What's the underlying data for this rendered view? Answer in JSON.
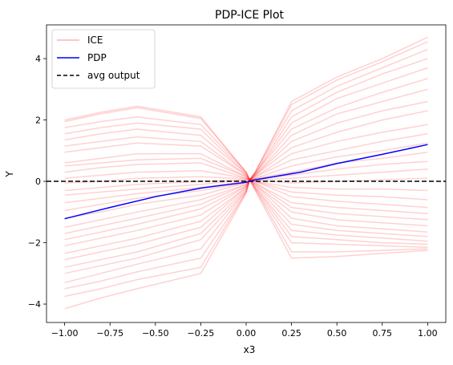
{
  "chart_data": {
    "type": "line",
    "title": "PDP-ICE Plot",
    "xlabel": "x3",
    "ylabel": "Y",
    "xlim": [
      -1.1,
      1.1
    ],
    "ylim": [
      -4.6,
      5.1
    ],
    "xticks": [
      -1.0,
      -0.75,
      -0.5,
      -0.25,
      0.0,
      0.25,
      0.5,
      0.75,
      1.0
    ],
    "xtick_labels": [
      "−1.00",
      "−0.75",
      "−0.50",
      "−0.25",
      "0.00",
      "0.25",
      "0.50",
      "0.75",
      "1.00"
    ],
    "yticks": [
      -4,
      -2,
      0,
      2,
      4
    ],
    "ytick_labels": [
      "−4",
      "−2",
      "0",
      "2",
      "4"
    ],
    "grid": false,
    "legend": {
      "placement": "top-left",
      "entries": [
        {
          "label": "ICE",
          "color": "#ffb3b3",
          "style": "solid"
        },
        {
          "label": "PDP",
          "color": "#0000ff",
          "style": "solid"
        },
        {
          "label": "avg output",
          "color": "#000000",
          "style": "dashed"
        }
      ]
    },
    "pdp": {
      "name": "PDP",
      "color": "#0000ff",
      "x": [
        -1.0,
        -0.75,
        -0.5,
        -0.25,
        0.0,
        0.05,
        0.3,
        0.5,
        0.75,
        1.0
      ],
      "y": [
        -1.22,
        -0.85,
        -0.5,
        -0.22,
        -0.03,
        0.05,
        0.3,
        0.58,
        0.88,
        1.2
      ]
    },
    "avg_output": {
      "name": "avg output",
      "y": 0.0,
      "color": "#000000"
    },
    "ice": {
      "name": "ICE",
      "color": "#ff0000",
      "alpha": 0.18,
      "x": [
        -1.0,
        -0.8,
        -0.6,
        -0.25,
        0.0,
        0.02,
        0.05,
        0.25,
        0.5,
        0.75,
        1.0
      ],
      "curves": [
        [
          2.0,
          2.25,
          2.45,
          2.1,
          0.3,
          0.05,
          0.3,
          2.6,
          3.4,
          4.0,
          4.7
        ],
        [
          1.95,
          2.2,
          2.4,
          2.05,
          0.3,
          0.05,
          0.3,
          2.5,
          3.3,
          3.9,
          4.55
        ],
        [
          1.75,
          1.95,
          2.1,
          1.85,
          0.3,
          0.05,
          0.3,
          2.3,
          3.1,
          3.7,
          4.3
        ],
        [
          1.55,
          1.75,
          1.9,
          1.7,
          0.25,
          0.05,
          0.25,
          2.1,
          2.9,
          3.5,
          4.0
        ],
        [
          1.35,
          1.55,
          1.7,
          1.5,
          0.25,
          0.05,
          0.25,
          1.9,
          2.7,
          3.2,
          3.7
        ],
        [
          1.15,
          1.3,
          1.45,
          1.3,
          0.2,
          0.05,
          0.25,
          1.7,
          2.4,
          2.9,
          3.35
        ],
        [
          0.95,
          1.1,
          1.25,
          1.15,
          0.2,
          0.05,
          0.2,
          1.5,
          2.2,
          2.6,
          3.0
        ],
        [
          0.6,
          0.75,
          0.9,
          0.9,
          0.15,
          0.05,
          0.2,
          1.3,
          1.9,
          2.3,
          2.6
        ],
        [
          0.5,
          0.6,
          0.7,
          0.75,
          0.15,
          0.05,
          0.2,
          1.1,
          1.6,
          2.0,
          2.3
        ],
        [
          0.3,
          0.45,
          0.55,
          0.6,
          0.1,
          0.05,
          0.15,
          0.9,
          1.3,
          1.6,
          1.85
        ],
        [
          0.1,
          0.2,
          0.3,
          0.35,
          0.1,
          0.05,
          0.15,
          0.7,
          1.0,
          1.3,
          1.55
        ],
        [
          -0.05,
          0.0,
          0.1,
          0.15,
          0.08,
          0.05,
          0.1,
          0.5,
          0.8,
          1.0,
          1.25
        ],
        [
          -0.3,
          -0.2,
          -0.1,
          0.0,
          0.05,
          0.05,
          0.1,
          0.3,
          0.6,
          0.75,
          0.95
        ],
        [
          -0.45,
          -0.35,
          -0.25,
          -0.1,
          0.05,
          0.05,
          0.08,
          0.2,
          0.4,
          0.55,
          0.65
        ],
        [
          -0.7,
          -0.55,
          -0.4,
          -0.2,
          0.0,
          0.05,
          0.05,
          0.1,
          0.2,
          0.3,
          0.4
        ],
        [
          -0.95,
          -0.75,
          -0.55,
          -0.3,
          -0.05,
          0.05,
          0.05,
          -0.05,
          0.0,
          0.05,
          0.1
        ],
        [
          -1.2,
          -1.0,
          -0.75,
          -0.45,
          -0.05,
          0.05,
          0.0,
          -0.2,
          -0.25,
          -0.25,
          -0.3
        ],
        [
          -1.5,
          -1.25,
          -1.0,
          -0.6,
          -0.1,
          0.05,
          0.0,
          -0.35,
          -0.45,
          -0.5,
          -0.6
        ],
        [
          -1.7,
          -1.45,
          -1.2,
          -0.75,
          -0.1,
          0.05,
          0.0,
          -0.5,
          -0.65,
          -0.75,
          -0.85
        ],
        [
          -1.9,
          -1.65,
          -1.4,
          -0.9,
          -0.15,
          0.05,
          -0.05,
          -0.7,
          -0.85,
          -0.95,
          -1.05
        ],
        [
          -2.1,
          -1.85,
          -1.6,
          -1.1,
          -0.15,
          0.05,
          -0.05,
          -0.85,
          -1.05,
          -1.15,
          -1.25
        ],
        [
          -2.35,
          -2.1,
          -1.85,
          -1.3,
          -0.2,
          0.05,
          -0.1,
          -1.0,
          -1.25,
          -1.35,
          -1.45
        ],
        [
          -2.55,
          -2.3,
          -2.05,
          -1.5,
          -0.2,
          0.05,
          -0.1,
          -1.2,
          -1.45,
          -1.55,
          -1.65
        ],
        [
          -2.8,
          -2.55,
          -2.3,
          -1.7,
          -0.25,
          0.05,
          -0.15,
          -1.4,
          -1.6,
          -1.7,
          -1.8
        ],
        [
          -3.0,
          -2.75,
          -2.5,
          -1.9,
          -0.3,
          0.05,
          -0.2,
          -1.6,
          -1.75,
          -1.85,
          -1.95
        ],
        [
          -3.3,
          -3.0,
          -2.7,
          -2.2,
          -0.3,
          0.05,
          -0.2,
          -1.8,
          -1.9,
          -2.0,
          -2.05
        ],
        [
          -3.5,
          -3.25,
          -2.95,
          -2.5,
          -0.35,
          0.05,
          -0.25,
          -2.0,
          -2.05,
          -2.1,
          -2.15
        ],
        [
          -3.75,
          -3.5,
          -3.2,
          -2.8,
          -0.35,
          0.05,
          -0.25,
          -2.3,
          -2.3,
          -2.25,
          -2.2
        ],
        [
          -4.15,
          -3.8,
          -3.5,
          -3.0,
          -0.4,
          0.05,
          -0.3,
          -2.5,
          -2.45,
          -2.35,
          -2.25
        ]
      ]
    }
  }
}
